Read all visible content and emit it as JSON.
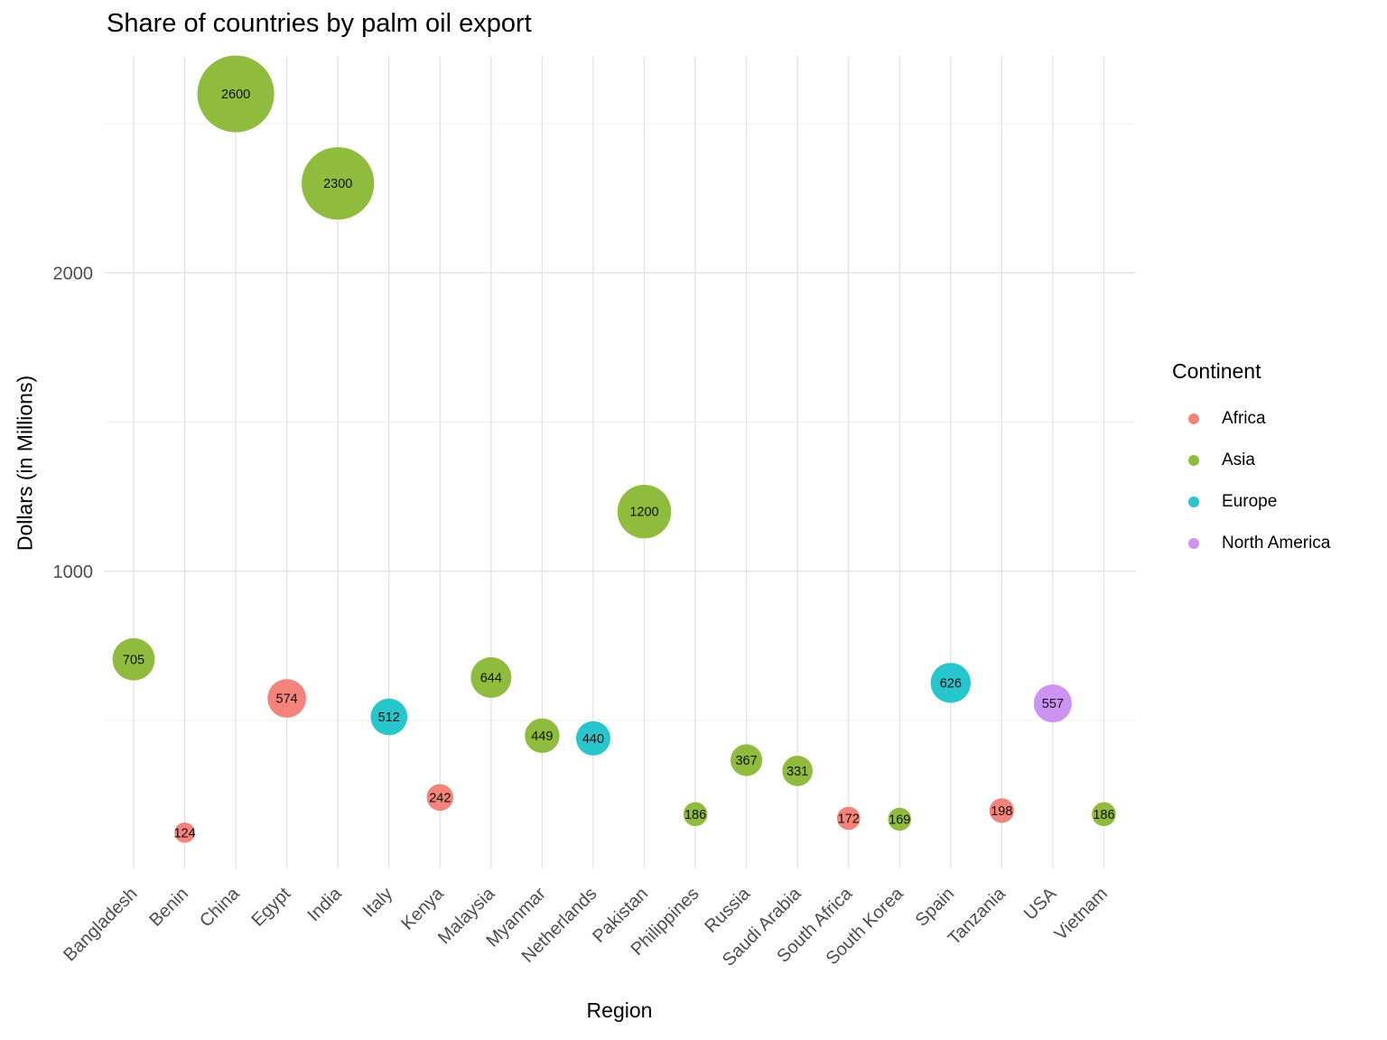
{
  "chart_data": {
    "type": "scatter",
    "subtype": "bubble",
    "title": "Share of countries by palm oil export",
    "xlabel": "Region",
    "ylabel": "Dollars (in Millions)",
    "legend_title": "Continent",
    "legend_position": "right",
    "grid": true,
    "x_tick_angle": 45,
    "ylim": [
      0,
      2724
    ],
    "ytick_values": [
      1000,
      2000
    ],
    "ytick_labels": [
      "1000",
      "2000"
    ],
    "yminor_values": [
      500,
      1500,
      2500
    ],
    "categories": [
      "Bangladesh",
      "Benin",
      "China",
      "Egypt",
      "India",
      "Italy",
      "Kenya",
      "Malaysia",
      "Myanmar",
      "Netherlands",
      "Pakistan",
      "Philippines",
      "Russia",
      "Saudi Arabia",
      "South Africa",
      "South Korea",
      "Spain",
      "Tanzania",
      "USA",
      "Vietnam"
    ],
    "points": [
      {
        "country": "Bangladesh",
        "value": 705,
        "label": "705",
        "continent": "Asia"
      },
      {
        "country": "Benin",
        "value": 124,
        "label": "124",
        "continent": "Africa"
      },
      {
        "country": "China",
        "value": 2600,
        "label": "2600",
        "continent": "Asia"
      },
      {
        "country": "Egypt",
        "value": 574,
        "label": "574",
        "continent": "Africa"
      },
      {
        "country": "India",
        "value": 2300,
        "label": "2300",
        "continent": "Asia"
      },
      {
        "country": "Italy",
        "value": 512,
        "label": "512",
        "continent": "Europe"
      },
      {
        "country": "Kenya",
        "value": 242,
        "label": "242",
        "continent": "Africa"
      },
      {
        "country": "Malaysia",
        "value": 644,
        "label": "644",
        "continent": "Asia"
      },
      {
        "country": "Myanmar",
        "value": 449,
        "label": "449",
        "continent": "Asia"
      },
      {
        "country": "Netherlands",
        "value": 440,
        "label": "440",
        "continent": "Europe"
      },
      {
        "country": "Pakistan",
        "value": 1200,
        "label": "1200",
        "continent": "Asia"
      },
      {
        "country": "Philippines",
        "value": 186,
        "label": "186",
        "continent": "Asia"
      },
      {
        "country": "Russia",
        "value": 367,
        "label": "367",
        "continent": "Asia"
      },
      {
        "country": "Saudi Arabia",
        "value": 331,
        "label": "331",
        "continent": "Asia"
      },
      {
        "country": "South Africa",
        "value": 172,
        "label": "172",
        "continent": "Africa"
      },
      {
        "country": "South Korea",
        "value": 169,
        "label": "169",
        "continent": "Asia"
      },
      {
        "country": "Spain",
        "value": 626,
        "label": "626",
        "continent": "Europe"
      },
      {
        "country": "Tanzania",
        "value": 198,
        "label": "198",
        "continent": "Africa"
      },
      {
        "country": "USA",
        "value": 557,
        "label": "557",
        "continent": "North America"
      },
      {
        "country": "Vietnam",
        "value": 186,
        "label": "186",
        "continent": "Asia"
      }
    ],
    "continents": [
      {
        "name": "Africa",
        "color": "#F3837B"
      },
      {
        "name": "Asia",
        "color": "#8FBC3C"
      },
      {
        "name": "Europe",
        "color": "#27C6CC"
      },
      {
        "name": "North America",
        "color": "#CC93F2"
      }
    ],
    "colors": {
      "major_grid": "#E2E2E2",
      "minor_grid": "#F0F0F0",
      "tick_text": "#4D4D4D",
      "bubble_text": "#111111"
    }
  }
}
